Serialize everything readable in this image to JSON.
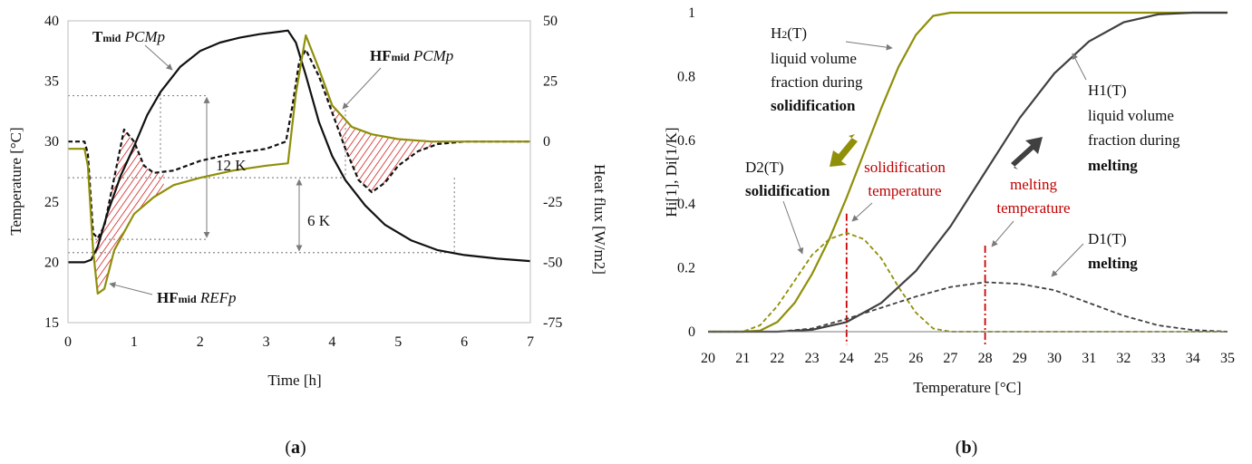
{
  "colors": {
    "olive": "#8f8f0a",
    "dark": "#111111",
    "grey_curve": "#404040",
    "hatch": "#cc0000",
    "red_label": "#c00000",
    "dotted": "#8a8a8a"
  },
  "panel_a": {
    "caption_open": "(",
    "caption_letter": "a",
    "caption_close": ")",
    "labels": {
      "tmid": "T",
      "tmid_sub": "mid",
      "tmid_it": " PCMp",
      "hfmid_pcm": "HF",
      "hfmid_pcm_sub": "mid",
      "hfmid_pcm_it": " PCMp",
      "hfmid_ref": "HF",
      "hfmid_ref_sub": "mid",
      "hfmid_ref_it": " REFp",
      "dk12": "12 K",
      "dk6": "6 K"
    }
  },
  "panel_b": {
    "caption_open": "(",
    "caption_letter": "b",
    "caption_close": ")",
    "labels": {
      "h2_line1": "H",
      "h2_sub": "2",
      "h2_line1b": "(T)",
      "h2_line2": "liquid volume",
      "h2_line3": "fraction during",
      "h2_line4": "solidification",
      "h1_line1": "H1(T)",
      "h1_line2": "liquid volume",
      "h1_line3": "fraction during",
      "h1_line4": "melting",
      "d2_line1": "D2(T)",
      "d2_line2": "solidification",
      "d1_line1": "D1(T)",
      "d1_line2": "melting",
      "sol_temp_1": "solidification",
      "sol_temp_2": "temperature",
      "melt_temp_1": "melting",
      "melt_temp_2": "temperature"
    }
  },
  "chart_data": [
    {
      "type": "line",
      "xlabel": "Time [h]",
      "ylabel": "Temperature [°C]",
      "y2label": "Heat flux [W/m2]",
      "xlim": [
        0,
        7
      ],
      "ylim": [
        15,
        40
      ],
      "y2lim": [
        -75,
        50
      ],
      "xticks": [
        "0",
        "1",
        "2",
        "3",
        "4",
        "5",
        "6",
        "7"
      ],
      "yticks": [
        "15",
        "20",
        "25",
        "30",
        "35",
        "40"
      ],
      "y2ticks": [
        "-75",
        "-50",
        "-25",
        "0",
        "25",
        "50"
      ],
      "series": [
        {
          "axis": "left",
          "color": "#111111",
          "dash": "solid",
          "x": [
            0,
            0.25,
            0.35,
            0.45,
            0.6,
            0.8,
            1.0,
            1.2,
            1.4,
            1.7,
            2.0,
            2.3,
            2.6,
            2.9,
            3.2,
            3.33,
            3.45,
            3.6,
            3.8,
            4.0,
            4.2,
            4.5,
            4.8,
            5.2,
            5.6,
            6.0,
            6.5,
            7.0
          ],
          "y": [
            20,
            20,
            20.2,
            21.3,
            24.1,
            27.2,
            29.6,
            32.2,
            34.1,
            36.2,
            37.5,
            38.2,
            38.6,
            38.9,
            39.1,
            39.2,
            38.2,
            35.5,
            31.6,
            28.8,
            26.8,
            24.7,
            23.1,
            21.8,
            21.0,
            20.6,
            20.3,
            20.1
          ]
        },
        {
          "axis": "right",
          "color": "#111111",
          "dash": "dashed",
          "x": [
            0,
            0.25,
            0.3,
            0.38,
            0.45,
            0.55,
            0.7,
            0.85,
            1.0,
            1.15,
            1.3,
            1.6,
            2.0,
            2.5,
            3.0,
            3.3,
            3.4,
            3.5,
            3.6,
            3.8,
            4.0,
            4.2,
            4.4,
            4.6,
            4.8,
            5.0,
            5.3,
            5.6,
            6.0,
            7.0
          ],
          "y": [
            0,
            0,
            -5,
            -38,
            -40,
            -35,
            -15,
            5,
            0,
            -10,
            -13,
            -12,
            -8,
            -5,
            -3,
            0,
            15,
            33,
            38,
            27,
            12,
            -3,
            -16,
            -21,
            -17,
            -10,
            -4,
            -1,
            0,
            0
          ]
        },
        {
          "axis": "right",
          "color": "#8f8f0a",
          "dash": "solid",
          "x": [
            0,
            0.25,
            0.3,
            0.38,
            0.45,
            0.55,
            0.7,
            1.0,
            1.3,
            1.6,
            2.0,
            2.5,
            3.0,
            3.33,
            3.45,
            3.6,
            3.8,
            4.0,
            4.3,
            4.6,
            5.0,
            5.5,
            6.0,
            7.0
          ],
          "y": [
            -3,
            -3,
            -10,
            -45,
            -63,
            -61,
            -45,
            -30,
            -23,
            -18,
            -15,
            -12,
            -10,
            -9,
            20,
            44,
            30,
            15,
            6,
            3,
            1,
            0,
            0,
            0
          ]
        }
      ]
    },
    {
      "type": "line",
      "xlabel": "Temperature [°C]",
      "ylabel": "Hi[1], Di[1/K]",
      "xlim": [
        20,
        35
      ],
      "ylim": [
        0,
        1
      ],
      "xticks": [
        "20",
        "21",
        "22",
        "23",
        "24",
        "25",
        "26",
        "27",
        "28",
        "29",
        "30",
        "31",
        "32",
        "33",
        "34",
        "35"
      ],
      "yticks": [
        "0",
        "0.2",
        "0.4",
        "0.6",
        "0.8",
        "1"
      ],
      "series": [
        {
          "color": "#8f8f0a",
          "dash": "solid",
          "x": [
            20,
            21,
            21.5,
            22,
            22.5,
            23,
            23.5,
            24,
            24.5,
            25,
            25.5,
            26,
            26.5,
            27,
            35
          ],
          "y": [
            0,
            0,
            0.003,
            0.03,
            0.09,
            0.18,
            0.29,
            0.42,
            0.56,
            0.7,
            0.83,
            0.93,
            0.99,
            1.0,
            1.0
          ]
        },
        {
          "color": "#404040",
          "dash": "solid",
          "x": [
            20,
            22,
            23,
            24,
            25,
            26,
            27,
            28,
            29,
            30,
            31,
            32,
            33,
            34,
            35
          ],
          "y": [
            0,
            0,
            0.006,
            0.03,
            0.09,
            0.19,
            0.33,
            0.5,
            0.67,
            0.81,
            0.91,
            0.97,
            0.995,
            1.0,
            1.0
          ]
        },
        {
          "color": "#8f8f0a",
          "dash": "dashed",
          "x": [
            20,
            21,
            21.5,
            22,
            22.5,
            23,
            23.5,
            24,
            24.5,
            25,
            25.5,
            26,
            26.5,
            27,
            35
          ],
          "y": [
            0,
            0,
            0.02,
            0.08,
            0.16,
            0.24,
            0.29,
            0.31,
            0.29,
            0.23,
            0.14,
            0.06,
            0.01,
            0,
            0
          ]
        },
        {
          "color": "#404040",
          "dash": "dashed",
          "x": [
            20,
            22,
            23,
            24,
            25,
            26,
            27,
            28,
            29,
            30,
            31,
            32,
            33,
            34,
            35
          ],
          "y": [
            0,
            0,
            0.01,
            0.04,
            0.075,
            0.11,
            0.14,
            0.155,
            0.15,
            0.13,
            0.09,
            0.05,
            0.02,
            0.005,
            0
          ]
        }
      ],
      "annotations": {
        "solidification_temperature": 24,
        "melting_temperature": 28
      }
    }
  ]
}
